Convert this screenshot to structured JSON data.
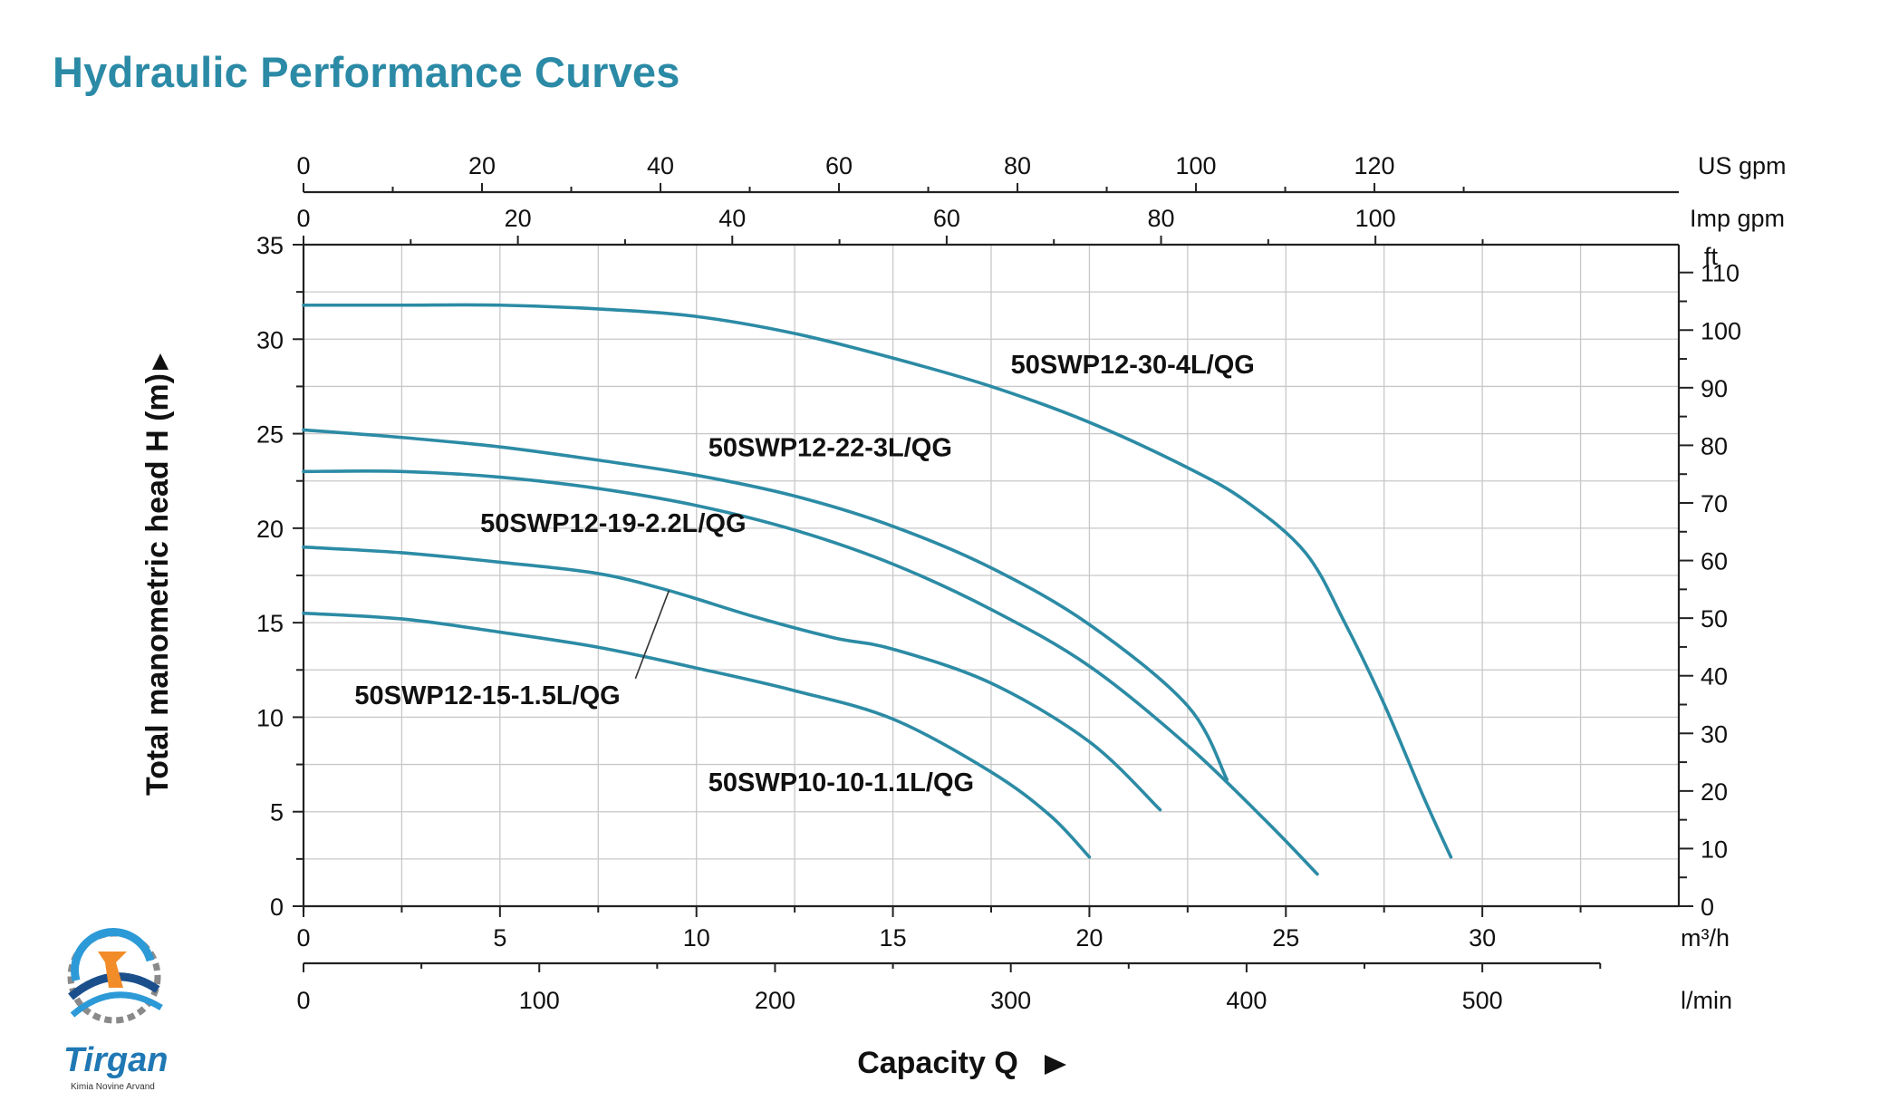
{
  "title": "Hydraulic Performance Curves",
  "chart_data": {
    "type": "line",
    "title": "",
    "xlabel": "Capacity Q",
    "ylabel": "Total manometric head H (m)",
    "xlim": [
      0,
      35
    ],
    "ylim": [
      0,
      35
    ],
    "grid": true,
    "axes": {
      "left": {
        "unit": "",
        "ticks": [
          0,
          5,
          10,
          15,
          20,
          25,
          30,
          35
        ]
      },
      "bottom": {
        "unit": "m³/h",
        "ticks": [
          0,
          5,
          10,
          15,
          20,
          25,
          30
        ]
      },
      "bottom_secondary": {
        "unit": "l/min",
        "ticks": [
          0,
          100,
          200,
          300,
          400,
          500
        ]
      },
      "top_imp": {
        "unit": "Imp gpm",
        "ticks": [
          0,
          20,
          40,
          60,
          80,
          100
        ]
      },
      "top_us": {
        "unit": "US gpm",
        "ticks": [
          0,
          20,
          40,
          60,
          80,
          100,
          120
        ]
      },
      "right": {
        "unit": "ft",
        "ticks": [
          0,
          10,
          20,
          30,
          40,
          50,
          60,
          70,
          80,
          90,
          100,
          110
        ]
      }
    },
    "series": [
      {
        "name": "50SWP12-30-4L/QG",
        "color": "#2c8ba5",
        "x": [
          0,
          2.5,
          5,
          7.5,
          10,
          12.5,
          15,
          17.5,
          20,
          22.5,
          24,
          25.5,
          26.5,
          27.5,
          28.5,
          29.2
        ],
        "y": [
          31.8,
          31.8,
          31.8,
          31.6,
          31.2,
          30.3,
          29.0,
          27.5,
          25.6,
          23.2,
          21.4,
          18.7,
          15.0,
          10.7,
          5.8,
          2.6
        ]
      },
      {
        "name": "50SWP12-22-3L/QG",
        "color": "#2c8ba5",
        "x": [
          0,
          2.5,
          5,
          7.5,
          10,
          12.5,
          15,
          17.5,
          20,
          22.5,
          23.5
        ],
        "y": [
          25.2,
          24.8,
          24.3,
          23.6,
          22.8,
          21.7,
          20.1,
          17.9,
          14.9,
          10.6,
          6.7
        ]
      },
      {
        "name": "50SWP12-19-2.2L/QG",
        "color": "#2c8ba5",
        "x": [
          0,
          2.5,
          5,
          7.5,
          10,
          12.5,
          15,
          17.5,
          20,
          22.5,
          24.5,
          25.8
        ],
        "y": [
          23.0,
          23.0,
          22.7,
          22.1,
          21.2,
          19.9,
          18.1,
          15.7,
          12.7,
          8.5,
          4.5,
          1.7
        ]
      },
      {
        "name": "50SWP12-15-1.5L/QG",
        "color": "#2c8ba5",
        "x": [
          0,
          2.5,
          5,
          7.5,
          9.3,
          11.5,
          13.5,
          15,
          17.5,
          20,
          21.8
        ],
        "y": [
          19.0,
          18.7,
          18.2,
          17.6,
          16.7,
          15.3,
          14.2,
          13.6,
          11.8,
          8.7,
          5.1
        ]
      },
      {
        "name": "50SWP10-10-1.1L/QG",
        "color": "#2c8ba5",
        "x": [
          0,
          2.5,
          5,
          7.5,
          10,
          12.5,
          15,
          17.5,
          19,
          20
        ],
        "y": [
          15.5,
          15.2,
          14.5,
          13.7,
          12.6,
          11.4,
          9.9,
          7.1,
          4.8,
          2.6
        ]
      }
    ],
    "annotations": [
      {
        "text": "50SWP12-30-4L/QG",
        "x": 18.0,
        "y": 28.2
      },
      {
        "text": "50SWP12-22-3L/QG",
        "x": 10.3,
        "y": 23.8
      },
      {
        "text": "50SWP12-19-2.2L/QG",
        "x": 4.5,
        "y": 19.8
      },
      {
        "text": "50SWP12-15-1.5L/QG",
        "x": 1.3,
        "y": 10.7,
        "leader_to": [
          9.3,
          16.7
        ]
      },
      {
        "text": "50SWP10-10-1.1L/QG",
        "x": 10.3,
        "y": 6.1
      }
    ]
  },
  "logo": {
    "brand": "Tirgan",
    "subtitle": "Kimia Novine Arvand"
  }
}
